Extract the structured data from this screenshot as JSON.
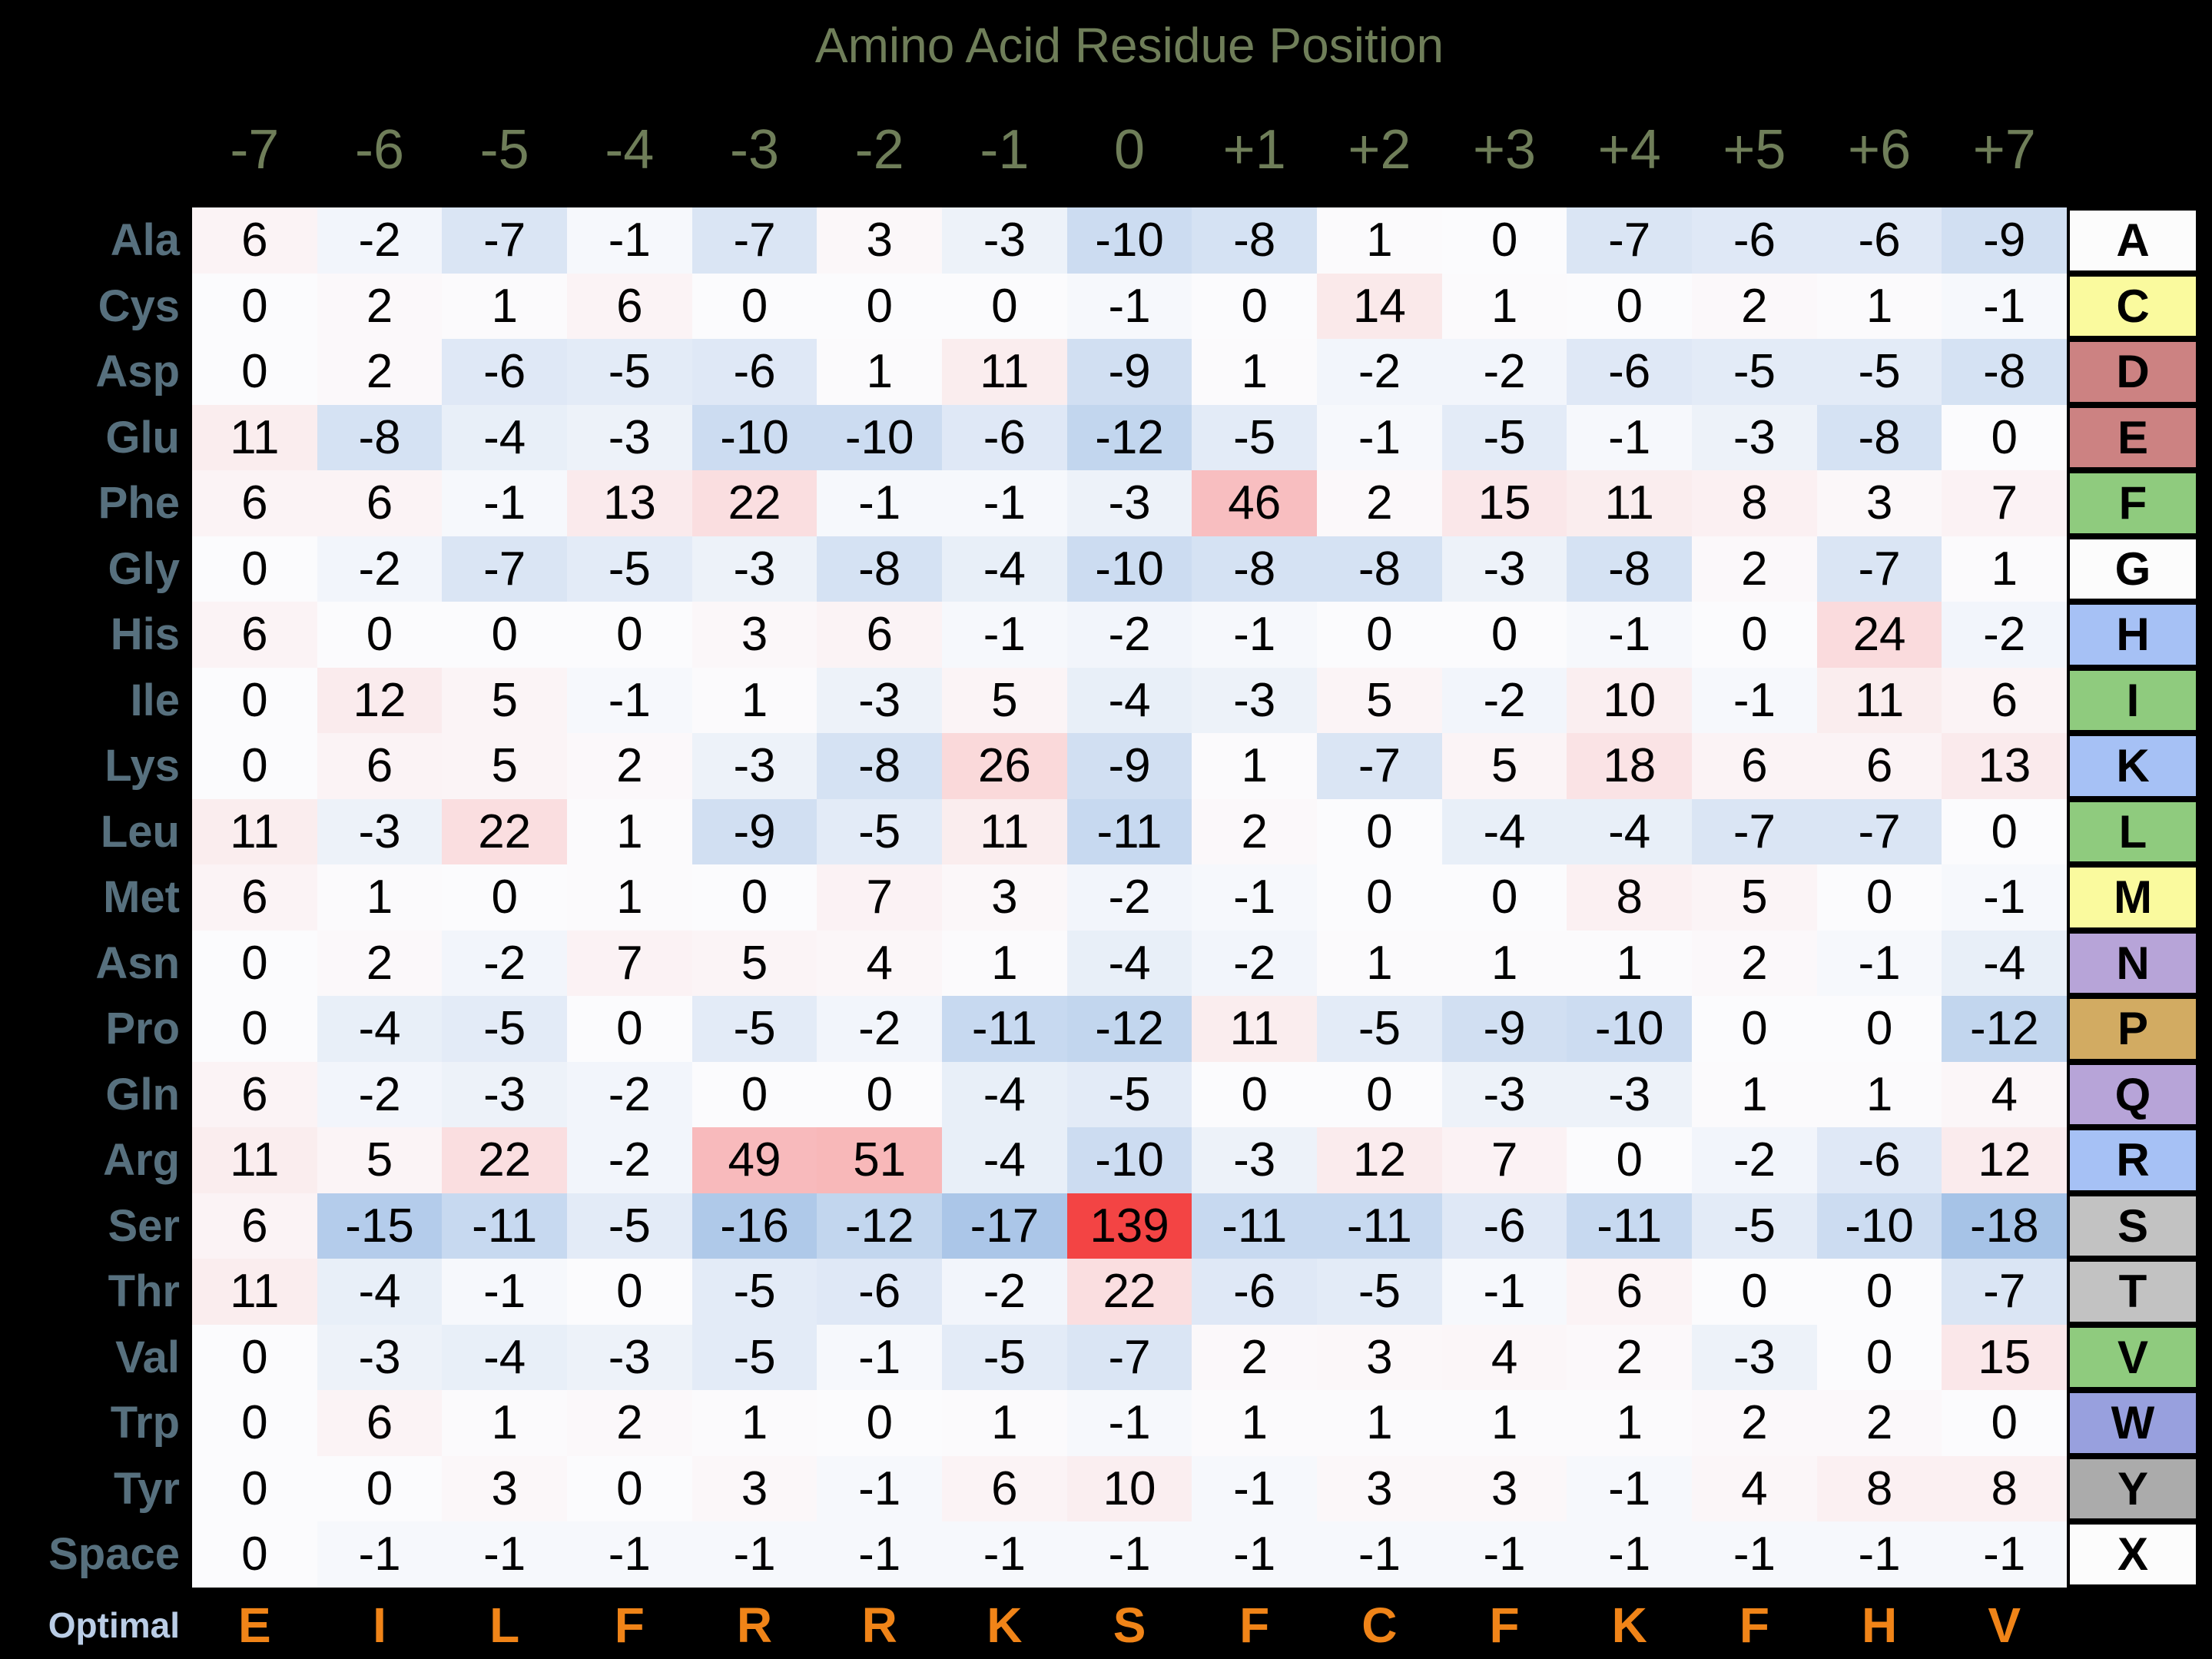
{
  "chart_data": {
    "type": "heatmap",
    "title": "Amino Acid Residue Position",
    "xlabel": "Amino Acid Residue Position",
    "x_categories": [
      "-7",
      "-6",
      "-5",
      "-4",
      "-3",
      "-2",
      "-1",
      "0",
      "+1",
      "+2",
      "+3",
      "+4",
      "+5",
      "+6",
      "+7"
    ],
    "y_categories": [
      "Ala",
      "Cys",
      "Asp",
      "Glu",
      "Phe",
      "Gly",
      "His",
      "Ile",
      "Lys",
      "Leu",
      "Met",
      "Asn",
      "Pro",
      "Gln",
      "Arg",
      "Ser",
      "Thr",
      "Val",
      "Trp",
      "Tyr",
      "Space"
    ],
    "row_letters": [
      "A",
      "C",
      "D",
      "E",
      "F",
      "G",
      "H",
      "I",
      "K",
      "L",
      "M",
      "N",
      "P",
      "Q",
      "R",
      "S",
      "T",
      "V",
      "W",
      "Y",
      "X"
    ],
    "values": [
      [
        6,
        -2,
        -7,
        -1,
        -7,
        3,
        -3,
        -10,
        -8,
        1,
        0,
        -7,
        -6,
        -6,
        -9
      ],
      [
        0,
        2,
        1,
        6,
        0,
        0,
        0,
        -1,
        0,
        14,
        1,
        0,
        2,
        1,
        -1
      ],
      [
        0,
        2,
        -6,
        -5,
        -6,
        1,
        11,
        -9,
        1,
        -2,
        -2,
        -6,
        -5,
        -5,
        -8
      ],
      [
        11,
        -8,
        -4,
        -3,
        -10,
        -10,
        -6,
        -12,
        -5,
        -1,
        -5,
        -1,
        -3,
        -8,
        0
      ],
      [
        6,
        6,
        -1,
        13,
        22,
        -1,
        -1,
        -3,
        46,
        2,
        15,
        11,
        8,
        3,
        7
      ],
      [
        0,
        -2,
        -7,
        -5,
        -3,
        -8,
        -4,
        -10,
        -8,
        -8,
        -3,
        -8,
        2,
        -7,
        1
      ],
      [
        6,
        0,
        0,
        0,
        3,
        6,
        -1,
        -2,
        -1,
        0,
        0,
        -1,
        0,
        24,
        -2
      ],
      [
        0,
        12,
        5,
        -1,
        1,
        -3,
        5,
        -4,
        -3,
        5,
        -2,
        10,
        -1,
        11,
        6
      ],
      [
        0,
        6,
        5,
        2,
        -3,
        -8,
        26,
        -9,
        1,
        -7,
        5,
        18,
        6,
        6,
        13
      ],
      [
        11,
        -3,
        22,
        1,
        -9,
        -5,
        11,
        -11,
        2,
        0,
        -4,
        -4,
        -7,
        -7,
        0
      ],
      [
        6,
        1,
        0,
        1,
        0,
        7,
        3,
        -2,
        -1,
        0,
        0,
        8,
        5,
        0,
        -1
      ],
      [
        0,
        2,
        -2,
        7,
        5,
        4,
        1,
        -4,
        -2,
        1,
        1,
        1,
        2,
        -1,
        -4
      ],
      [
        0,
        -4,
        -5,
        0,
        -5,
        -2,
        -11,
        -12,
        11,
        -5,
        -9,
        -10,
        0,
        0,
        -12
      ],
      [
        6,
        -2,
        -3,
        -2,
        0,
        0,
        -4,
        -5,
        0,
        0,
        -3,
        -3,
        1,
        1,
        4
      ],
      [
        11,
        5,
        22,
        -2,
        49,
        51,
        -4,
        -10,
        -3,
        12,
        7,
        0,
        -2,
        -6,
        12
      ],
      [
        6,
        -15,
        -11,
        -5,
        -16,
        -12,
        -17,
        139,
        -11,
        -11,
        -6,
        -11,
        -5,
        -10,
        -18
      ],
      [
        11,
        -4,
        -1,
        0,
        -5,
        -6,
        -2,
        22,
        -6,
        -5,
        -1,
        6,
        0,
        0,
        -7
      ],
      [
        0,
        -3,
        -4,
        -3,
        -5,
        -1,
        -5,
        -7,
        2,
        3,
        4,
        2,
        -3,
        0,
        15
      ],
      [
        0,
        6,
        1,
        2,
        1,
        0,
        1,
        -1,
        1,
        1,
        1,
        1,
        2,
        2,
        0
      ],
      [
        0,
        0,
        3,
        0,
        3,
        -1,
        6,
        10,
        -1,
        3,
        3,
        -1,
        4,
        8,
        8
      ],
      [
        0,
        -1,
        -1,
        -1,
        -1,
        -1,
        -1,
        -1,
        -1,
        -1,
        -1,
        -1,
        -1,
        -1,
        -1
      ]
    ],
    "letter_colors": [
      "#FCFCFC",
      "#FAFA9E",
      "#CC8282",
      "#CC8282",
      "#8FCB7E",
      "#FCFCFC",
      "#A6C1F5",
      "#8FCB7E",
      "#A6C1F5",
      "#8FCB7E",
      "#FAFA9E",
      "#B7A4D8",
      "#D2AB62",
      "#B7A4D8",
      "#A6C1F5",
      "#C2C2C2",
      "#C2C2C2",
      "#8FCB7E",
      "#98A0DE",
      "#ABABAB",
      "#FCFCFC"
    ],
    "optimal_label": "Optimal",
    "optimal": [
      "E",
      "I",
      "L",
      "F",
      "R",
      "R",
      "K",
      "S",
      "F",
      "C",
      "F",
      "K",
      "F",
      "H",
      "V"
    ],
    "colormap": {
      "zero_color": "#FBFBFD",
      "negative_endpoint": "#A6C3E7",
      "positive_endpoint": "#F34444",
      "negative_limit": 18,
      "positive_limit": 139
    },
    "value_range": [
      -18,
      139
    ],
    "legend_position": "none",
    "grid": false
  },
  "styles": {
    "background": "#000000",
    "title_color": "#6F7E59",
    "header_color": "#6F7E59",
    "row_label_color": "#57707E",
    "optimal_label_color": "#BACDE6",
    "optimal_letter_color": "#F08418",
    "cell_text_color": "#000000"
  }
}
